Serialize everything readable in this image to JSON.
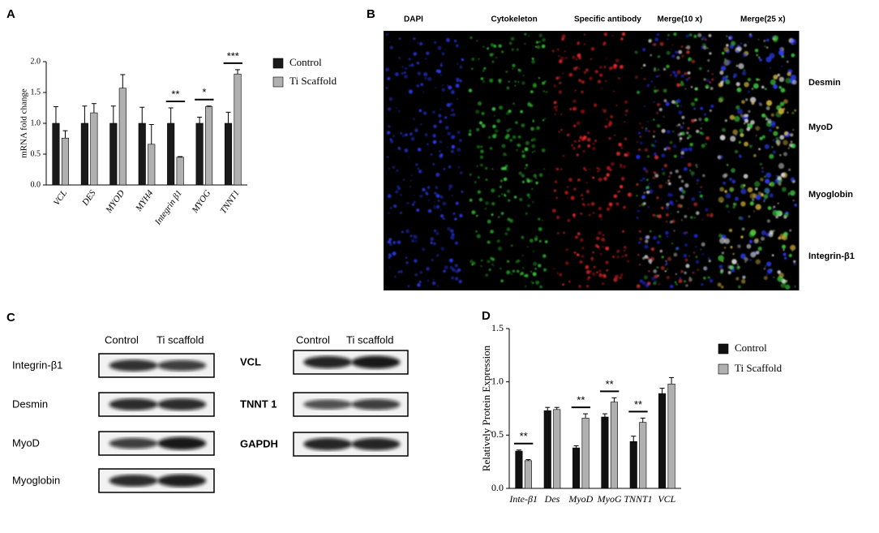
{
  "chart_data": [
    {
      "type": "bar",
      "panel": "A",
      "ylabel": "mRNA fold change",
      "categories": [
        "VCL",
        "DES",
        "MYOD",
        "MYH4",
        "Integrin β1",
        "MYOG",
        "TNNT1"
      ],
      "series": [
        {
          "name": "Control",
          "color": "#1a1a1a",
          "values": [
            1.0,
            1.0,
            1.0,
            1.0,
            1.0,
            1.0,
            1.0
          ],
          "errors": [
            0.27,
            0.28,
            0.28,
            0.26,
            0.25,
            0.1,
            0.18
          ]
        },
        {
          "name": "Ti Scaffold",
          "color": "#b0b0b0",
          "values": [
            0.76,
            1.17,
            1.57,
            0.66,
            0.45,
            1.27,
            1.8
          ],
          "errors": [
            0.12,
            0.15,
            0.22,
            0.32,
            0.01,
            0.01,
            0.07
          ]
        }
      ],
      "ylim": [
        0,
        2
      ],
      "yticks": [
        {
          "value": 0,
          "label": "0.0"
        },
        {
          "value": 0.5,
          "label": "0.5"
        },
        {
          "value": 1,
          "label": "1.0"
        },
        {
          "value": 1.5,
          "label": "1.5"
        },
        {
          "value": 2,
          "label": "2.0"
        }
      ],
      "annotations": [
        {
          "text": "**",
          "category": "Integrin β1"
        },
        {
          "text": "*",
          "category": "MYOG"
        },
        {
          "text": "***",
          "category": "TNNT1"
        }
      ],
      "legend": "right"
    },
    {
      "type": "bar",
      "panel": "D",
      "ylabel": "Relatively Protein Expression",
      "categories": [
        "Inte-β1",
        "Des",
        "MyoD",
        "MyoG",
        "TNNT1",
        "VCL"
      ],
      "series": [
        {
          "name": "Control",
          "color": "#111111",
          "values": [
            0.35,
            0.73,
            0.38,
            0.67,
            0.44,
            0.89
          ],
          "errors": [
            0.01,
            0.03,
            0.02,
            0.03,
            0.05,
            0.05
          ]
        },
        {
          "name": "Ti Scaffold",
          "color": "#b0b0b0",
          "values": [
            0.26,
            0.74,
            0.66,
            0.81,
            0.62,
            0.98
          ],
          "errors": [
            0.01,
            0.02,
            0.04,
            0.04,
            0.04,
            0.06
          ]
        }
      ],
      "ylim": [
        0,
        1.5
      ],
      "yticks": [
        {
          "value": 0,
          "label": "0.0"
        },
        {
          "value": 0.5,
          "label": "0.5"
        },
        {
          "value": 1,
          "label": "1.0"
        },
        {
          "value": 1.5,
          "label": "1.5"
        }
      ],
      "annotations": [
        {
          "text": "**",
          "category": "Inte-β1"
        },
        {
          "text": "**",
          "category": "MyoD"
        },
        {
          "text": "**",
          "category": "MyoG"
        },
        {
          "text": "**",
          "category": "TNNT1"
        }
      ],
      "legend": "right"
    }
  ],
  "microscopy": {
    "panel": "B",
    "columns": [
      "DAPI",
      "Cytokeleton",
      "Specific antibody",
      "Merge(10  x)",
      "Merge(25  x)"
    ],
    "rows": [
      "Desmin",
      "MyoD",
      "Myoglobin",
      "Integrin-β1"
    ]
  },
  "western_blot": {
    "panel": "C",
    "groups": [
      {
        "headers": [
          "Control",
          "Ti scaffold"
        ],
        "proteins": [
          "Integrin-β1",
          "Desmin",
          "MyoD",
          "Myoglobin"
        ]
      },
      {
        "headers": [
          "Control",
          "Ti scaffold"
        ],
        "proteins": [
          "VCL",
          "TNNT 1",
          "GAPDH"
        ]
      }
    ]
  }
}
